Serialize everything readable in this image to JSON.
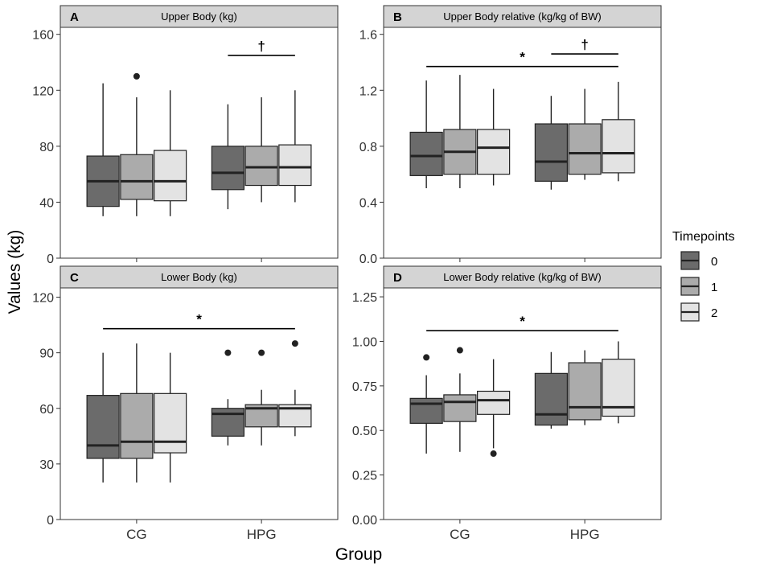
{
  "figure": {
    "y_axis_label": "Values (kg)",
    "x_axis_label": "Group",
    "legend": {
      "title": "Timepoints",
      "items": [
        {
          "label": "0",
          "color": "#6b6b6b"
        },
        {
          "label": "1",
          "color": "#ababab"
        },
        {
          "label": "2",
          "color": "#e3e3e3"
        }
      ]
    }
  },
  "chart_data": [
    {
      "type": "box",
      "panel": "A",
      "title": "Upper Body (kg)",
      "groups": [
        "CG",
        "HPG"
      ],
      "show_x_ticks": false,
      "ylim": [
        0,
        165
      ],
      "yticks": [
        0,
        40,
        80,
        120,
        160
      ],
      "ytick_labels": [
        "0",
        "40",
        "80",
        "120",
        "160"
      ],
      "boxes": [
        {
          "group": "CG",
          "timepoint": "0",
          "min": 30,
          "q1": 37,
          "median": 55,
          "q3": 73,
          "max": 125,
          "outliers": []
        },
        {
          "group": "CG",
          "timepoint": "1",
          "min": 30,
          "q1": 42,
          "median": 55,
          "q3": 74,
          "max": 115,
          "outliers": [
            130
          ]
        },
        {
          "group": "CG",
          "timepoint": "2",
          "min": 30,
          "q1": 41,
          "median": 55,
          "q3": 77,
          "max": 120,
          "outliers": []
        },
        {
          "group": "HPG",
          "timepoint": "0",
          "min": 35,
          "q1": 49,
          "median": 61,
          "q3": 80,
          "max": 110,
          "outliers": []
        },
        {
          "group": "HPG",
          "timepoint": "1",
          "min": 40,
          "q1": 52,
          "median": 65,
          "q3": 80,
          "max": 115,
          "outliers": []
        },
        {
          "group": "HPG",
          "timepoint": "2",
          "min": 40,
          "q1": 52,
          "median": 65,
          "q3": 81,
          "max": 120,
          "outliers": []
        }
      ],
      "annotations": [
        {
          "symbol": "†",
          "from": {
            "group": "HPG",
            "timepoint": "0"
          },
          "to": {
            "group": "HPG",
            "timepoint": "2"
          },
          "y": 145
        }
      ]
    },
    {
      "type": "box",
      "panel": "B",
      "title": "Upper Body relative (kg/kg of BW)",
      "groups": [
        "CG",
        "HPG"
      ],
      "show_x_ticks": false,
      "ylim": [
        0,
        1.65
      ],
      "yticks": [
        0,
        0.4,
        0.8,
        1.2,
        1.6
      ],
      "ytick_labels": [
        "0.0",
        "0.4",
        "0.8",
        "1.2",
        "1.6"
      ],
      "boxes": [
        {
          "group": "CG",
          "timepoint": "0",
          "min": 0.5,
          "q1": 0.59,
          "median": 0.73,
          "q3": 0.9,
          "max": 1.27,
          "outliers": []
        },
        {
          "group": "CG",
          "timepoint": "1",
          "min": 0.5,
          "q1": 0.6,
          "median": 0.76,
          "q3": 0.92,
          "max": 1.31,
          "outliers": []
        },
        {
          "group": "CG",
          "timepoint": "2",
          "min": 0.52,
          "q1": 0.6,
          "median": 0.79,
          "q3": 0.92,
          "max": 1.21,
          "outliers": []
        },
        {
          "group": "HPG",
          "timepoint": "0",
          "min": 0.49,
          "q1": 0.55,
          "median": 0.69,
          "q3": 0.96,
          "max": 1.16,
          "outliers": []
        },
        {
          "group": "HPG",
          "timepoint": "1",
          "min": 0.56,
          "q1": 0.6,
          "median": 0.75,
          "q3": 0.96,
          "max": 1.21,
          "outliers": []
        },
        {
          "group": "HPG",
          "timepoint": "2",
          "min": 0.55,
          "q1": 0.61,
          "median": 0.75,
          "q3": 0.99,
          "max": 1.26,
          "outliers": []
        }
      ],
      "annotations": [
        {
          "symbol": "*",
          "from": {
            "group": "CG",
            "timepoint": "0"
          },
          "to": {
            "group": "HPG",
            "timepoint": "2"
          },
          "y": 1.37
        },
        {
          "symbol": "†",
          "from": {
            "group": "HPG",
            "timepoint": "0"
          },
          "to": {
            "group": "HPG",
            "timepoint": "2"
          },
          "y": 1.46
        }
      ]
    },
    {
      "type": "box",
      "panel": "C",
      "title": "Lower Body (kg)",
      "groups": [
        "CG",
        "HPG"
      ],
      "show_x_ticks": true,
      "ylim": [
        0,
        125
      ],
      "yticks": [
        0,
        30,
        60,
        90,
        120
      ],
      "ytick_labels": [
        "0",
        "30",
        "60",
        "90",
        "120"
      ],
      "boxes": [
        {
          "group": "CG",
          "timepoint": "0",
          "min": 20,
          "q1": 33,
          "median": 40,
          "q3": 67,
          "max": 90,
          "outliers": []
        },
        {
          "group": "CG",
          "timepoint": "1",
          "min": 20,
          "q1": 33,
          "median": 42,
          "q3": 68,
          "max": 95,
          "outliers": []
        },
        {
          "group": "CG",
          "timepoint": "2",
          "min": 20,
          "q1": 36,
          "median": 42,
          "q3": 68,
          "max": 90,
          "outliers": []
        },
        {
          "group": "HPG",
          "timepoint": "0",
          "min": 40,
          "q1": 45,
          "median": 57,
          "q3": 60,
          "max": 65,
          "outliers": [
            90
          ]
        },
        {
          "group": "HPG",
          "timepoint": "1",
          "min": 40,
          "q1": 50,
          "median": 60,
          "q3": 62,
          "max": 70,
          "outliers": [
            90
          ]
        },
        {
          "group": "HPG",
          "timepoint": "2",
          "min": 45,
          "q1": 50,
          "median": 60,
          "q3": 62,
          "max": 70,
          "outliers": [
            95
          ]
        }
      ],
      "annotations": [
        {
          "symbol": "*",
          "from": {
            "group": "CG",
            "timepoint": "0"
          },
          "to": {
            "group": "HPG",
            "timepoint": "2"
          },
          "y": 103
        }
      ]
    },
    {
      "type": "box",
      "panel": "D",
      "title": "Lower Body relative (kg/kg of BW)",
      "groups": [
        "CG",
        "HPG"
      ],
      "show_x_ticks": true,
      "ylim": [
        0,
        1.3
      ],
      "yticks": [
        0,
        0.25,
        0.5,
        0.75,
        1.0,
        1.25
      ],
      "ytick_labels": [
        "0.00",
        "0.25",
        "0.50",
        "0.75",
        "1.00",
        "1.25"
      ],
      "boxes": [
        {
          "group": "CG",
          "timepoint": "0",
          "min": 0.37,
          "q1": 0.54,
          "median": 0.65,
          "q3": 0.68,
          "max": 0.81,
          "outliers": [
            0.91
          ]
        },
        {
          "group": "CG",
          "timepoint": "1",
          "min": 0.38,
          "q1": 0.55,
          "median": 0.66,
          "q3": 0.7,
          "max": 0.82,
          "outliers": [
            0.95
          ]
        },
        {
          "group": "CG",
          "timepoint": "2",
          "min": 0.4,
          "q1": 0.59,
          "median": 0.67,
          "q3": 0.72,
          "max": 0.9,
          "outliers": [
            0.37
          ]
        },
        {
          "group": "HPG",
          "timepoint": "0",
          "min": 0.51,
          "q1": 0.53,
          "median": 0.59,
          "q3": 0.82,
          "max": 0.94,
          "outliers": []
        },
        {
          "group": "HPG",
          "timepoint": "1",
          "min": 0.53,
          "q1": 0.56,
          "median": 0.63,
          "q3": 0.88,
          "max": 0.95,
          "outliers": []
        },
        {
          "group": "HPG",
          "timepoint": "2",
          "min": 0.54,
          "q1": 0.58,
          "median": 0.63,
          "q3": 0.9,
          "max": 1.0,
          "outliers": []
        }
      ],
      "annotations": [
        {
          "symbol": "*",
          "from": {
            "group": "CG",
            "timepoint": "0"
          },
          "to": {
            "group": "HPG",
            "timepoint": "2"
          },
          "y": 1.06
        }
      ]
    }
  ]
}
